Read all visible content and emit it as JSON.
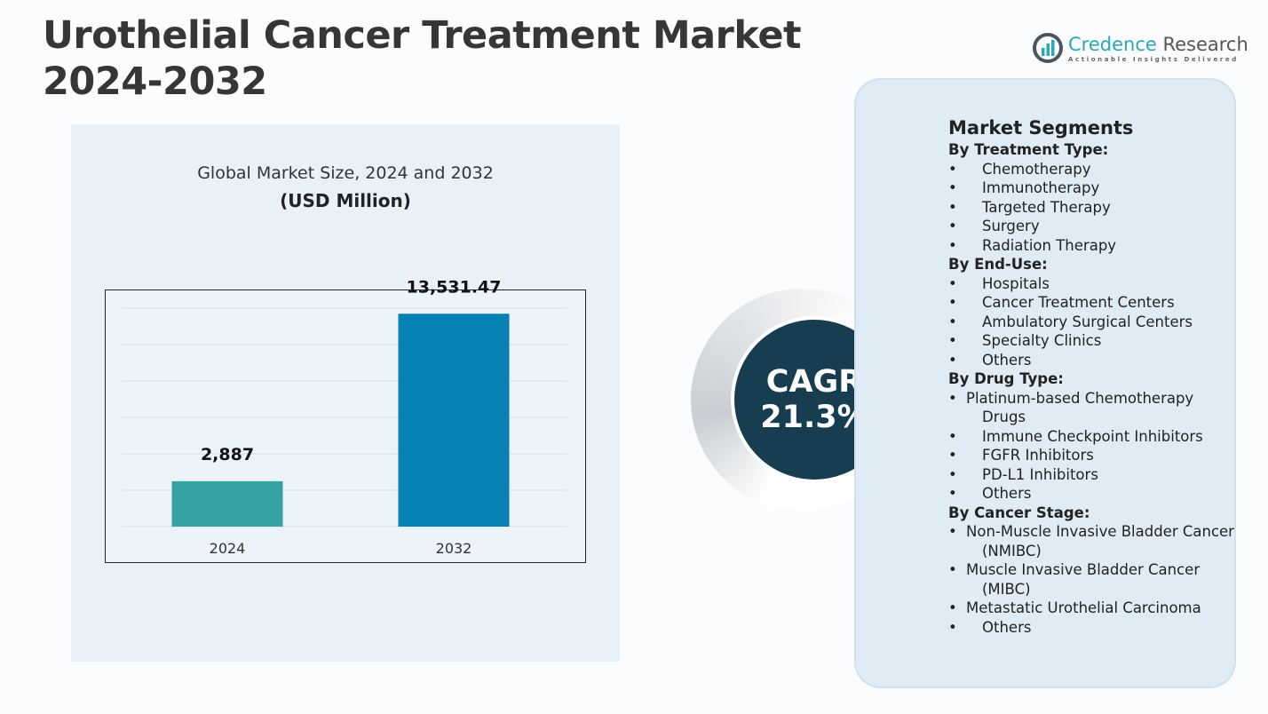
{
  "title": "Urothelial Cancer Treatment Market 2024-2032",
  "title_lines": [
    "Urothelial Cancer Treatment Market",
    "2024-2032"
  ],
  "logo": {
    "name_a": "Credence",
    "name_b": " Research",
    "tagline": "Actionable Insights Delivered",
    "colors": {
      "accent": "#2aa7b8",
      "text": "#555555"
    }
  },
  "chart_data": {
    "type": "bar",
    "title": "Global Market Size, 2024 and 2032",
    "subtitle": "(USD Million)",
    "categories": [
      "2024",
      "2032"
    ],
    "values": [
      2887,
      13531.47
    ],
    "data_labels": [
      "2,887",
      "13,531.47"
    ],
    "colors": [
      "#35a3a3",
      "#0581b3"
    ],
    "ylim": [
      0,
      14000
    ],
    "grid": true,
    "legend": "none"
  },
  "cagr": {
    "label": "CAGR",
    "value": "21.3%",
    "color": "#163e50"
  },
  "segments": {
    "heading": "Market Segments",
    "groups": [
      {
        "title": "By Treatment Type:",
        "items": [
          "Chemotherapy",
          "Immunotherapy",
          "Targeted Therapy",
          "Surgery",
          "Radiation Therapy"
        ]
      },
      {
        "title": "By End-Use:",
        "items": [
          "Hospitals",
          "Cancer Treatment Centers",
          "Ambulatory Surgical Centers",
          "Specialty Clinics",
          "Others"
        ]
      },
      {
        "title": "By Drug Type:",
        "items": [
          "Platinum-based Chemotherapy Drugs",
          "Immune Checkpoint Inhibitors",
          "FGFR Inhibitors",
          "PD-L1 Inhibitors",
          "Others"
        ]
      },
      {
        "title": "By Cancer Stage:",
        "items": [
          "Non-Muscle Invasive Bladder Cancer (NMIBC)",
          "Muscle Invasive Bladder Cancer (MIBC)",
          "Metastatic Urothelial Carcinoma",
          "Others"
        ]
      }
    ],
    "bullet": "•"
  }
}
